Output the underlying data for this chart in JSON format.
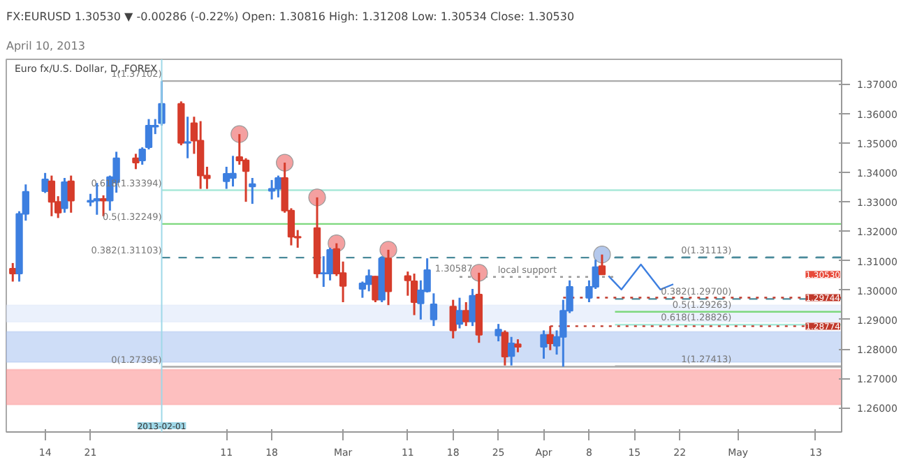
{
  "chart_data": {
    "type": "candlestick",
    "title": "FX:EURUSD 1.30530 ▼ -0.00286 (-0.22%) Open: 1.30816 High: 1.31208 Low: 1.30534 Close: 1.30530",
    "subtitle": "April 10, 2013",
    "x": [
      "2013-01-09",
      "2013-01-10",
      "2013-01-11",
      "2013-01-14",
      "2013-01-15",
      "2013-01-16",
      "2013-01-17",
      "2013-01-18",
      "2013-01-21",
      "2013-01-22",
      "2013-01-23",
      "2013-01-24",
      "2013-01-25",
      "2013-01-28",
      "2013-01-29",
      "2013-01-30",
      "2013-01-31",
      "2013-02-01",
      "2013-02-04",
      "2013-02-05",
      "2013-02-06",
      "2013-02-07",
      "2013-02-08",
      "2013-02-11",
      "2013-02-12",
      "2013-02-13",
      "2013-02-14",
      "2013-02-15",
      "2013-02-18",
      "2013-02-19",
      "2013-02-20",
      "2013-02-21",
      "2013-02-22",
      "2013-02-25",
      "2013-02-26",
      "2013-02-27",
      "2013-02-28",
      "2013-03-01",
      "2013-03-04",
      "2013-03-05",
      "2013-03-06",
      "2013-03-07",
      "2013-03-08",
      "2013-03-11",
      "2013-03-12",
      "2013-03-13",
      "2013-03-14",
      "2013-03-15",
      "2013-03-18",
      "2013-03-19",
      "2013-03-20",
      "2013-03-21",
      "2013-03-22",
      "2013-03-25",
      "2013-03-26",
      "2013-03-27",
      "2013-03-28",
      "2013-04-01",
      "2013-04-02",
      "2013-04-03",
      "2013-04-04",
      "2013-04-05",
      "2013-04-08",
      "2013-04-09",
      "2013-04-10"
    ],
    "ohlc": [
      [
        1.3073,
        1.3092,
        1.3029,
        1.3056
      ],
      [
        1.3056,
        1.3268,
        1.3029,
        1.3259
      ],
      [
        1.3259,
        1.3359,
        1.3236,
        1.3334
      ],
      [
        1.3336,
        1.3398,
        1.333,
        1.3376
      ],
      [
        1.337,
        1.3389,
        1.3251,
        1.33
      ],
      [
        1.33,
        1.3319,
        1.3245,
        1.3263
      ],
      [
        1.3278,
        1.3381,
        1.3263,
        1.3367
      ],
      [
        1.337,
        1.3389,
        1.3263,
        1.3304
      ],
      [
        1.33,
        1.3327,
        1.3285,
        1.3304
      ],
      [
        1.3304,
        1.3364,
        1.3256,
        1.331
      ],
      [
        1.331,
        1.3322,
        1.3251,
        1.3304
      ],
      [
        1.3304,
        1.3389,
        1.327,
        1.3384
      ],
      [
        1.3367,
        1.347,
        1.3331,
        1.3448
      ],
      [
        1.3448,
        1.3463,
        1.3411,
        1.3433
      ],
      [
        1.344,
        1.3485,
        1.3426,
        1.3478
      ],
      [
        1.3485,
        1.3581,
        1.3478,
        1.3559
      ],
      [
        1.3555,
        1.3581,
        1.353,
        1.3559
      ],
      [
        1.3567,
        1.371,
        1.3559,
        1.3633
      ],
      [
        1.3633,
        1.3641,
        1.3492,
        1.35
      ],
      [
        1.35,
        1.3589,
        1.3448,
        1.3503
      ],
      [
        1.3567,
        1.3589,
        1.3463,
        1.3508
      ],
      [
        1.3508,
        1.3574,
        1.3344,
        1.3389
      ],
      [
        1.3389,
        1.3419,
        1.3344,
        1.338
      ],
      [
        1.337,
        1.3419,
        1.3344,
        1.3395
      ],
      [
        1.3381,
        1.3456,
        1.3352,
        1.3396
      ],
      [
        1.3452,
        1.353,
        1.3426,
        1.344
      ],
      [
        1.3441,
        1.3448,
        1.33,
        1.3404
      ],
      [
        1.3352,
        1.3381,
        1.3293,
        1.336
      ],
      [
        1.3337,
        1.3374,
        1.3308,
        1.3344
      ],
      [
        1.3344,
        1.3389,
        1.3315,
        1.3381
      ],
      [
        1.3381,
        1.3433,
        1.3263,
        1.327
      ],
      [
        1.327,
        1.3278,
        1.3152,
        1.3181
      ],
      [
        1.3181,
        1.3204,
        1.3144,
        1.3178
      ],
      [
        1.3211,
        1.3315,
        1.3041,
        1.3056
      ],
      [
        1.3056,
        1.3115,
        1.3011,
        1.3058
      ],
      [
        1.3056,
        1.3144,
        1.3033,
        1.3137
      ],
      [
        1.314,
        1.3159,
        1.3048,
        1.3056
      ],
      [
        1.3058,
        1.3097,
        1.2959,
        1.3014
      ],
      [
        1.3004,
        1.3029,
        1.2974,
        1.3023
      ],
      [
        1.302,
        1.307,
        1.2996,
        1.3048
      ],
      [
        1.3046,
        1.3048,
        1.2959,
        1.2967
      ],
      [
        1.2967,
        1.3115,
        1.2959,
        1.3108
      ],
      [
        1.3108,
        1.3137,
        1.2949,
        1.2996
      ],
      [
        1.3048,
        1.3063,
        1.2981,
        1.3033
      ],
      [
        1.303,
        1.3056,
        1.2915,
        1.2959
      ],
      [
        1.2955,
        1.3033,
        1.29,
        1.2999
      ],
      [
        1.2996,
        1.3108,
        1.2992,
        1.3068
      ],
      [
        1.29,
        1.2989,
        1.2878,
        1.2952
      ],
      [
        1.2944,
        1.2967,
        1.2836,
        1.2863
      ],
      [
        1.2885,
        1.2974,
        1.287,
        1.293
      ],
      [
        1.293,
        1.2959,
        1.2878,
        1.2893
      ],
      [
        1.2893,
        1.3004,
        1.2878,
        1.2981
      ],
      [
        1.2985,
        1.3059,
        1.2821,
        1.2848
      ],
      [
        1.2846,
        1.2885,
        1.2826,
        1.2866
      ],
      [
        1.2856,
        1.2863,
        1.2744,
        1.2774
      ],
      [
        1.2776,
        1.2841,
        1.2744,
        1.2819
      ],
      [
        1.2816,
        1.2833,
        1.2789,
        1.2807
      ],
      [
        1.2807,
        1.2863,
        1.2767,
        1.2848
      ],
      [
        1.2848,
        1.2878,
        1.2796,
        1.2819
      ],
      [
        1.2811,
        1.2863,
        1.2781,
        1.2841
      ],
      [
        1.2841,
        1.2967,
        1.274,
        1.293
      ],
      [
        1.293,
        1.3033,
        1.2922,
        1.3011
      ],
      [
        1.2974,
        1.3033,
        1.2959,
        1.3011
      ],
      [
        1.3011,
        1.3103,
        1.3004,
        1.3078
      ],
      [
        1.30816,
        1.31208,
        1.3053,
        1.3053
      ]
    ],
    "series": [
      {
        "type": "scatter",
        "marker": "circle",
        "color": "#f4a0a0",
        "x": [
          "2013-02-13",
          "2013-02-20",
          "2013-02-25",
          "2013-02-28",
          "2013-03-08",
          "2013-03-22"
        ],
        "values": [
          1.353,
          1.3433,
          1.3315,
          1.3159,
          1.3137,
          1.3059
        ]
      },
      {
        "type": "scatter",
        "marker": "circle",
        "color": "#b4c8ec",
        "x": [
          "2013-04-10"
        ],
        "values": [
          1.3121
        ]
      },
      {
        "type": "line",
        "color": "#3d7fe0",
        "line_style": "solid",
        "x": [
          "2013-04-11",
          "2013-04-13",
          "2013-04-16",
          "2013-04-19",
          "2013-04-21"
        ],
        "values": [
          1.3048,
          1.3002,
          1.3087,
          1.3002,
          1.302
        ]
      },
      {
        "type": "line",
        "color": "#aaaaaa",
        "line_style": "solid",
        "x": [
          "2013-02-01",
          "2013-05-17"
        ],
        "values": [
          1.37102,
          1.37102
        ]
      },
      {
        "type": "line",
        "color": "#a8e8d8",
        "line_style": "solid",
        "x": [
          "2013-02-01",
          "2013-05-17"
        ],
        "values": [
          1.33394,
          1.33394
        ]
      },
      {
        "type": "line",
        "color": "#7dd87d",
        "line_style": "solid",
        "x": [
          "2013-02-01",
          "2013-05-17"
        ],
        "values": [
          1.32249,
          1.32249
        ]
      },
      {
        "type": "line",
        "color": "#4a8a9a",
        "line_style": "dashed",
        "x": [
          "2013-02-01",
          "2013-05-17"
        ],
        "values": [
          1.31103,
          1.31103
        ]
      },
      {
        "type": "line",
        "color": "#aaaaaa",
        "line_style": "solid",
        "x": [
          "2013-02-01",
          "2013-05-17"
        ],
        "values": [
          1.27395,
          1.27395
        ]
      },
      {
        "type": "line",
        "color": "#4a8a9a",
        "line_style": "dashed",
        "x": [
          "2013-04-12",
          "2013-05-17"
        ],
        "values": [
          1.31113,
          1.31113
        ]
      },
      {
        "type": "line",
        "color": "#4a8a9a",
        "line_style": "dashed",
        "x": [
          "2013-04-12",
          "2013-05-17"
        ],
        "values": [
          1.297,
          1.297
        ]
      },
      {
        "type": "line",
        "color": "#7dd87d",
        "line_style": "solid",
        "x": [
          "2013-04-12",
          "2013-05-17"
        ],
        "values": [
          1.29263,
          1.29263
        ]
      },
      {
        "type": "line",
        "color": "#a8e8d8",
        "line_style": "solid",
        "x": [
          "2013-04-12",
          "2013-05-17"
        ],
        "values": [
          1.28826,
          1.28826
        ]
      },
      {
        "type": "line",
        "color": "#aaaaaa",
        "line_style": "solid",
        "x": [
          "2013-04-12",
          "2013-05-17"
        ],
        "values": [
          1.27413,
          1.27413
        ]
      },
      {
        "type": "line",
        "color": "#c0392b",
        "line_style": "dotted",
        "x": [
          "2013-04-04",
          "2013-05-17"
        ],
        "values": [
          1.29744,
          1.29744
        ]
      },
      {
        "type": "line",
        "color": "#c0392b",
        "line_style": "dotted",
        "x": [
          "2013-04-02",
          "2013-05-17"
        ],
        "values": [
          1.28774,
          1.28774
        ]
      },
      {
        "type": "line",
        "color": "#999999",
        "line_style": "dotted",
        "x": [
          "2013-03-19",
          "2013-04-12"
        ],
        "values": [
          1.3045,
          1.3045
        ]
      }
    ],
    "bands": [
      {
        "axis": "y",
        "from": 1.2892,
        "to": 1.2949,
        "color": "#dbe6fa"
      },
      {
        "axis": "y",
        "from": 1.2755,
        "to": 1.2859,
        "color": "#a6c1f0"
      },
      {
        "axis": "y",
        "from": 1.2611,
        "to": 1.273,
        "color": "#fb8a8a"
      }
    ],
    "ref_lines": [
      {
        "axis": "x",
        "value": "2013-02-01",
        "label": "2013-02-01",
        "color": "#9fd8e8"
      }
    ],
    "annotations": [
      "Euro fx/U.S. Dollar, D, FOREX",
      {
        "text": "1(1.37102)",
        "x": "2013-02-01",
        "y": 1.37102
      },
      {
        "text": "0.618(1.33394)",
        "x": "2013-02-01",
        "y": 1.33394
      },
      {
        "text": "0.5(1.32249)",
        "x": "2013-02-01",
        "y": 1.32249
      },
      {
        "text": "0.382(1.31103)",
        "x": "2013-02-01",
        "y": 1.31103
      },
      {
        "text": "0(1.27395)",
        "x": "2013-02-01",
        "y": 1.27395
      },
      {
        "text": "0(1.31113)",
        "x": "2013-04-30",
        "y": 1.31113
      },
      {
        "text": "0.382(1.29700)",
        "x": "2013-04-30",
        "y": 1.297
      },
      {
        "text": "0.5(1.29263)",
        "x": "2013-04-30",
        "y": 1.29263
      },
      {
        "text": "0.618(1.28826)",
        "x": "2013-04-30",
        "y": 1.28826
      },
      {
        "text": "1(1.27413)",
        "x": "2013-04-30",
        "y": 1.27413
      },
      {
        "text": "local support",
        "x": "2013-04-03",
        "y": 1.3045
      },
      {
        "text": "1.30587",
        "x": "2013-03-21",
        "y": 1.30587
      },
      "1.30530",
      {
        "text": "1.29744",
        "y": 1.29744
      },
      {
        "text": "1.28774",
        "y": 1.28774
      }
    ],
    "xlim": [
      "2013-01-08",
      "2013-05-17"
    ],
    "xticks": [
      {
        "value": "2013-01-14",
        "label": "14"
      },
      {
        "value": "2013-01-21",
        "label": "21"
      },
      {
        "value": "2013-02-11",
        "label": "11"
      },
      {
        "value": "2013-02-18",
        "label": "18"
      },
      {
        "value": "2013-03-01",
        "label": "Mar"
      },
      {
        "value": "2013-03-11",
        "label": "11"
      },
      {
        "value": "2013-03-18",
        "label": "18"
      },
      {
        "value": "2013-03-25",
        "label": "25"
      },
      {
        "value": "2013-04-01",
        "label": "Apr"
      },
      {
        "value": "2013-04-08",
        "label": "8"
      },
      {
        "value": "2013-04-15",
        "label": "15"
      },
      {
        "value": "2013-04-22",
        "label": "22"
      },
      {
        "value": "2013-05-01",
        "label": "May"
      },
      {
        "value": "2013-05-13",
        "label": "13"
      }
    ],
    "ylim": [
      1.2518,
      1.3784
    ],
    "yticks": [
      {
        "value": 1.26,
        "label": "1.26000"
      },
      {
        "value": 1.27,
        "label": "1.27000"
      },
      {
        "value": 1.28,
        "label": "1.28000"
      },
      {
        "value": 1.29,
        "label": "1.29000"
      },
      {
        "value": 1.3,
        "label": "1.30000"
      },
      {
        "value": 1.31,
        "label": "1.31000"
      },
      {
        "value": 1.32,
        "label": "1.32000"
      },
      {
        "value": 1.33,
        "label": "1.33000"
      },
      {
        "value": 1.34,
        "label": "1.34000"
      },
      {
        "value": 1.35,
        "label": "1.35000"
      },
      {
        "value": 1.36,
        "label": "1.36000"
      },
      {
        "value": 1.37,
        "label": "1.37000"
      }
    ],
    "grid": false
  }
}
